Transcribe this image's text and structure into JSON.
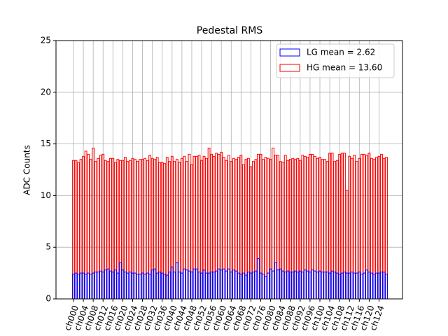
{
  "chart_data": {
    "type": "bar",
    "title": "Pedestal RMS",
    "y_label": "ADC Counts",
    "categories": [
      "ch000",
      null,
      null,
      null,
      "ch004",
      null,
      null,
      null,
      "ch008",
      null,
      null,
      null,
      "ch012",
      null,
      null,
      null,
      "ch016",
      null,
      null,
      null,
      "ch020",
      null,
      null,
      null,
      "ch024",
      null,
      null,
      null,
      "ch028",
      null,
      null,
      null,
      "ch032",
      null,
      null,
      null,
      "ch036",
      null,
      null,
      null,
      "ch040",
      null,
      null,
      null,
      "ch044",
      null,
      null,
      null,
      "ch048",
      null,
      null,
      null,
      "ch052",
      null,
      null,
      null,
      "ch056",
      null,
      null,
      null,
      "ch060",
      null,
      null,
      null,
      "ch064",
      null,
      null,
      null,
      "ch068",
      null,
      null,
      null,
      "ch072",
      null,
      null,
      null,
      "ch076",
      null,
      null,
      null,
      "ch080",
      null,
      null,
      null,
      "ch084",
      null,
      null,
      null,
      "ch088",
      null,
      null,
      null,
      "ch092",
      null,
      null,
      null,
      "ch096",
      null,
      null,
      null,
      "ch100",
      null,
      null,
      null,
      "ch104",
      null,
      null,
      null,
      "ch108",
      null,
      null,
      null,
      "ch112",
      null,
      null,
      null,
      "ch116",
      null,
      null,
      null,
      "ch120",
      null,
      null,
      null,
      "ch124",
      null,
      null,
      null
    ],
    "series": [
      {
        "name": "HG mean = 13.60",
        "color": "#ff0000",
        "values": [
          13.4,
          13.4,
          13.2,
          13.5,
          13.8,
          14.3,
          14.0,
          13.5,
          14.6,
          13.3,
          13.6,
          13.9,
          14.0,
          13.4,
          13.3,
          13.6,
          13.6,
          13.2,
          13.5,
          13.4,
          13.4,
          13.7,
          13.3,
          13.4,
          13.6,
          13.5,
          13.3,
          13.5,
          13.5,
          13.6,
          13.4,
          13.9,
          13.6,
          13.5,
          13.7,
          13.2,
          13.2,
          13.1,
          13.7,
          13.3,
          13.8,
          13.3,
          13.5,
          13.2,
          13.6,
          13.8,
          13.3,
          14.0,
          13.0,
          13.8,
          13.8,
          13.9,
          13.4,
          13.8,
          13.6,
          14.6,
          14.0,
          13.8,
          14.1,
          14.0,
          14.2,
          13.7,
          13.4,
          13.9,
          13.3,
          13.6,
          13.5,
          13.7,
          13.9,
          13.0,
          13.5,
          13.6,
          12.8,
          13.3,
          13.5,
          14.0,
          14.0,
          13.5,
          13.7,
          13.6,
          13.5,
          14.6,
          13.9,
          13.9,
          13.3,
          13.2,
          13.9,
          13.4,
          13.5,
          13.6,
          13.5,
          13.6,
          13.4,
          13.9,
          13.8,
          13.7,
          14.0,
          14.0,
          13.8,
          13.6,
          13.7,
          13.5,
          13.5,
          13.3,
          14.1,
          14.1,
          13.3,
          13.4,
          14.0,
          14.1,
          14.1,
          10.5,
          13.8,
          13.6,
          13.9,
          13.3,
          13.6,
          14.0,
          14.0,
          13.9,
          14.1,
          13.6,
          13.5,
          13.7,
          13.8,
          14.0,
          13.6,
          13.7
        ]
      },
      {
        "name": "LG mean = 2.62",
        "color": "#0000ff",
        "values": [
          2.4,
          2.5,
          2.4,
          2.5,
          2.5,
          2.4,
          2.5,
          2.4,
          2.5,
          2.6,
          2.6,
          2.7,
          2.6,
          2.8,
          2.9,
          2.7,
          2.6,
          2.8,
          2.5,
          3.5,
          2.8,
          2.6,
          2.5,
          2.6,
          2.5,
          2.5,
          2.4,
          2.4,
          2.5,
          2.4,
          2.5,
          2.4,
          2.8,
          2.9,
          2.5,
          2.6,
          2.5,
          2.4,
          2.3,
          2.6,
          3.1,
          2.6,
          3.5,
          2.6,
          2.5,
          2.9,
          2.8,
          2.7,
          2.6,
          2.9,
          2.9,
          2.6,
          2.5,
          2.8,
          2.5,
          2.5,
          2.6,
          2.6,
          2.7,
          2.9,
          2.8,
          2.9,
          2.7,
          2.9,
          2.6,
          2.8,
          2.7,
          2.5,
          2.4,
          2.5,
          2.3,
          2.6,
          2.5,
          2.6,
          2.7,
          3.9,
          2.5,
          2.4,
          2.2,
          2.5,
          2.9,
          2.7,
          3.5,
          2.8,
          2.9,
          2.7,
          2.6,
          2.7,
          2.6,
          2.6,
          2.7,
          2.6,
          2.7,
          2.6,
          2.8,
          2.7,
          2.6,
          2.8,
          2.7,
          2.6,
          2.7,
          2.6,
          2.6,
          2.6,
          2.5,
          2.7,
          2.6,
          2.5,
          2.4,
          2.5,
          2.6,
          2.5,
          2.5,
          2.6,
          2.5,
          2.5,
          2.6,
          2.4,
          2.5,
          2.8,
          2.6,
          2.5,
          2.4,
          2.5,
          2.5,
          2.6,
          2.6,
          2.4
        ]
      }
    ],
    "ylim": [
      0,
      25
    ],
    "yticks": [
      0,
      5,
      10,
      15,
      20,
      25
    ],
    "grid": true,
    "legend": "upper right"
  }
}
